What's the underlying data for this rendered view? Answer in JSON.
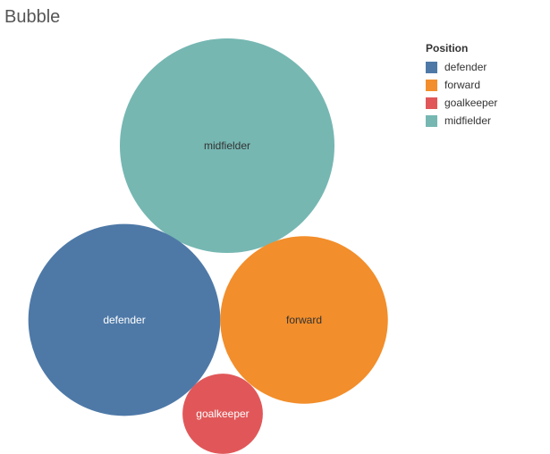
{
  "title": "Bubble",
  "chart_data": {
    "type": "bubble",
    "title": "Bubble",
    "legend": {
      "title": "Position",
      "placement": "top-right",
      "items": [
        {
          "name": "defender",
          "color": "#4e79a7"
        },
        {
          "name": "forward",
          "color": "#f28e2b"
        },
        {
          "name": "goalkeeper",
          "color": "#e15759"
        },
        {
          "name": "midfielder",
          "color": "#76b7b2"
        }
      ]
    },
    "bubbles": [
      {
        "category": "midfielder",
        "label": "midfielder",
        "value": 100,
        "color": "#76b7b2",
        "label_color": "#333333"
      },
      {
        "category": "defender",
        "label": "defender",
        "value": 80,
        "color": "#4e79a7",
        "label_color": "#ffffff"
      },
      {
        "category": "forward",
        "label": "forward",
        "value": 61,
        "color": "#f28e2b",
        "label_color": "#333333"
      },
      {
        "category": "goalkeeper",
        "label": "goalkeeper",
        "value": 14,
        "color": "#e15759",
        "label_color": "#ffffff"
      }
    ]
  }
}
